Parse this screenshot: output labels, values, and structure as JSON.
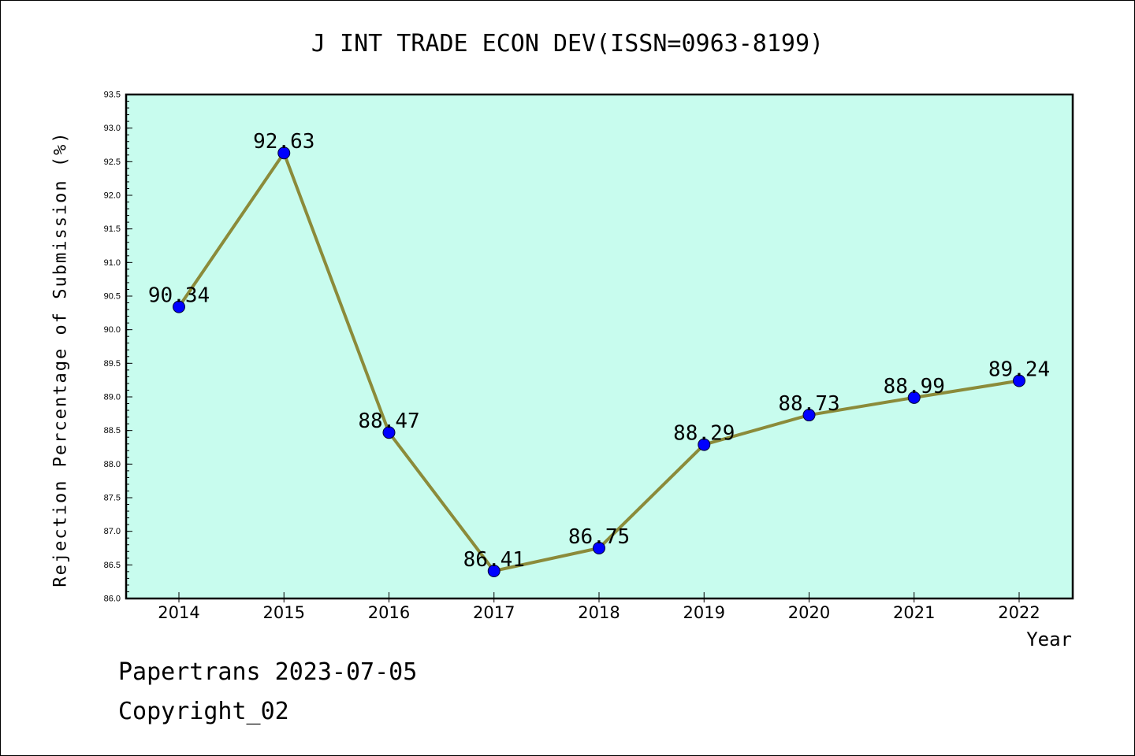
{
  "chart_data": {
    "type": "line",
    "title": "J INT TRADE ECON DEV(ISSN=0963-8199)",
    "xlabel": "Year",
    "ylabel": "Rejection Percentage of Submission (%)",
    "x": [
      "2014",
      "2015",
      "2016",
      "2017",
      "2018",
      "2019",
      "2020",
      "2021",
      "2022"
    ],
    "values": [
      90.34,
      92.63,
      88.47,
      86.41,
      86.75,
      88.29,
      88.73,
      88.99,
      89.24
    ],
    "data_labels": [
      "90.34",
      "92.63",
      "88.47",
      "86.41",
      "86.75",
      "88.29",
      "88.73",
      "88.99",
      "89.24"
    ],
    "ylim": [
      86.0,
      93.5
    ],
    "yticks": [
      "86.0",
      "86.5",
      "87.0",
      "87.5",
      "88.0",
      "88.5",
      "89.0",
      "89.5",
      "90.0",
      "90.5",
      "91.0",
      "91.5",
      "92.0",
      "92.5",
      "93.0",
      "93.5"
    ],
    "grid": false,
    "colors": {
      "plot_background": "#c8fcee",
      "line": "#8b8b3a",
      "marker": "#0000ff"
    }
  },
  "footer": {
    "line1": "Papertrans 2023-07-05",
    "line2": "Copyright_02"
  }
}
